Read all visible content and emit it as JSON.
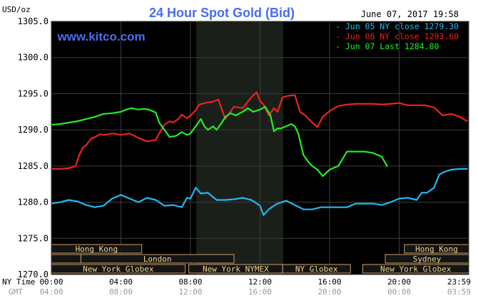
{
  "chart_data": {
    "type": "line",
    "title": "24 Hour Spot Gold (Bid)",
    "ylabel": "USD/oz",
    "watermark": "www.kitco.com",
    "timestamp": "June 07, 2017 19:58",
    "ylim": [
      1270,
      1305
    ],
    "y_ticks": [
      "1305.0",
      "1300.0",
      "1295.0",
      "1290.0",
      "1285.0",
      "1280.0",
      "1275.0",
      "1270.0"
    ],
    "x_range_hours": [
      0,
      24
    ],
    "x_tick_labels_ny": [
      "00:00",
      "04:00",
      "08:00",
      "12:00",
      "16:00",
      "20:00",
      "23:59"
    ],
    "x_tick_labels_gmt": [
      "04:00",
      "08:00",
      "12:00",
      "16:00",
      "20:00",
      "00:00",
      "03:59"
    ],
    "x_axis_row_labels": [
      "NY Time",
      "GMT"
    ],
    "shaded_session_hours": [
      8.33,
      13.33
    ],
    "legend": [
      {
        "label": "Jun 05 NY close 1279.30",
        "color": "#22b8ee"
      },
      {
        "label": "Jun 06 NY close 1293.60",
        "color": "#ee2222"
      },
      {
        "label": "Jun 07 Last 1284.80",
        "color": "#22ee22"
      }
    ],
    "series": [
      {
        "color": "#ee2222",
        "x": [
          0,
          0.5,
          1,
          1.4,
          1.6,
          1.8,
          2,
          2.3,
          2.5,
          2.8,
          3,
          3.3,
          3.5,
          4,
          4.5,
          5,
          5.5,
          6,
          6.2,
          6.5,
          6.8,
          7,
          7.3,
          7.5,
          7.8,
          8,
          8.3,
          8.5,
          9,
          9.3,
          9.6,
          10,
          10.5,
          11,
          11.5,
          11.8,
          12,
          12.2,
          12.5,
          12.8,
          13,
          13.3,
          13.6,
          14,
          14.3,
          14.6,
          15,
          15.3,
          15.6,
          16,
          16.5,
          17,
          17.5,
          18,
          18.5,
          19,
          19.5,
          20,
          20.5,
          21,
          21.5,
          22,
          22.5,
          23,
          23.5,
          23.9
        ],
        "y": [
          1284.6,
          1284.6,
          1284.7,
          1285.0,
          1286.5,
          1287.5,
          1287.9,
          1288.8,
          1289.0,
          1289.4,
          1289.3,
          1289.4,
          1289.5,
          1289.3,
          1289.5,
          1288.9,
          1288.4,
          1288.6,
          1289.5,
          1290.7,
          1291.2,
          1291.0,
          1291.5,
          1292.1,
          1291.6,
          1292.0,
          1292.7,
          1293.5,
          1293.8,
          1293.9,
          1294.2,
          1291.5,
          1293.2,
          1293.0,
          1294.5,
          1295.2,
          1294.0,
          1293.5,
          1292.0,
          1293.0,
          1292.5,
          1294.5,
          1294.7,
          1294.8,
          1292.5,
          1292.0,
          1291.0,
          1290.4,
          1291.8,
          1292.6,
          1293.3,
          1293.5,
          1293.6,
          1293.6,
          1293.6,
          1293.5,
          1293.6,
          1293.7,
          1293.4,
          1293.4,
          1293.4,
          1293.1,
          1292.0,
          1292.2,
          1291.8,
          1291.2
        ]
      },
      {
        "color": "#22ee22",
        "x": [
          0,
          0.5,
          1,
          1.5,
          2,
          2.5,
          3,
          3.5,
          4,
          4.3,
          4.6,
          5,
          5.3,
          5.6,
          6,
          6.2,
          6.5,
          6.8,
          7,
          7.2,
          7.5,
          7.8,
          8,
          8.3,
          8.6,
          8.8,
          9,
          9.3,
          9.5,
          9.8,
          10,
          10.3,
          10.6,
          11,
          11.3,
          11.6,
          12,
          12.3,
          12.6,
          12.8,
          13,
          13.2,
          13.5,
          13.8,
          14,
          14.2,
          14.5,
          14.8,
          15,
          15.3,
          15.6,
          16,
          16.5,
          17,
          17.5,
          18,
          18.5,
          19,
          19.3
        ],
        "y": [
          1290.7,
          1290.8,
          1291.0,
          1291.2,
          1291.5,
          1291.8,
          1292.2,
          1292.3,
          1292.5,
          1292.8,
          1293.0,
          1292.8,
          1292.9,
          1292.8,
          1292.4,
          1291.0,
          1290.0,
          1289.0,
          1289.1,
          1289.2,
          1289.7,
          1289.3,
          1289.5,
          1290.5,
          1291.5,
          1290.5,
          1290.0,
          1290.5,
          1290.0,
          1291.0,
          1291.8,
          1292.3,
          1292.0,
          1292.5,
          1293.0,
          1292.5,
          1292.8,
          1293.2,
          1292.0,
          1289.8,
          1290.2,
          1290.2,
          1290.5,
          1290.8,
          1290.5,
          1289.5,
          1286.5,
          1285.5,
          1285.0,
          1284.5,
          1283.6,
          1284.5,
          1285.0,
          1287.0,
          1287.0,
          1287.0,
          1286.8,
          1286.3,
          1285.0
        ]
      },
      {
        "color": "#22b8ee",
        "x": [
          0,
          0.5,
          1,
          1.5,
          2,
          2.5,
          3,
          3.5,
          4,
          4.5,
          5,
          5.5,
          6,
          6.5,
          7,
          7.5,
          7.8,
          8,
          8.3,
          8.6,
          9,
          9.5,
          10,
          10.5,
          11,
          11.5,
          12,
          12.2,
          12.5,
          12.8,
          13,
          13.5,
          14,
          14.5,
          15,
          15.5,
          16,
          16.5,
          17,
          17.5,
          18,
          18.5,
          19,
          19.5,
          20,
          20.5,
          21,
          21.3,
          21.6,
          22,
          22.3,
          22.6,
          23,
          23.5,
          23.9
        ],
        "y": [
          1279.8,
          1280.0,
          1280.3,
          1280.1,
          1279.6,
          1279.3,
          1279.5,
          1280.5,
          1281.0,
          1280.5,
          1280.0,
          1280.6,
          1280.3,
          1279.5,
          1279.6,
          1279.3,
          1280.6,
          1280.5,
          1282.0,
          1281.2,
          1281.3,
          1280.3,
          1280.3,
          1280.4,
          1280.6,
          1280.3,
          1279.5,
          1278.2,
          1279.0,
          1279.5,
          1279.8,
          1280.2,
          1279.6,
          1279.0,
          1279.0,
          1279.3,
          1279.3,
          1279.3,
          1279.3,
          1279.8,
          1279.8,
          1279.8,
          1279.6,
          1280.0,
          1280.5,
          1280.6,
          1280.3,
          1281.3,
          1281.3,
          1282.0,
          1283.8,
          1284.2,
          1284.5,
          1284.6,
          1284.6
        ]
      }
    ],
    "sessions": [
      {
        "label": "Hong Kong",
        "start": 0,
        "end": 5.2,
        "row": 1
      },
      {
        "label": "",
        "start": 0,
        "end": 1.7,
        "row": 2
      },
      {
        "label": "London",
        "start": 1.7,
        "end": 10.5,
        "row": 2
      },
      {
        "label": "New York Globex",
        "start": 0,
        "end": 7.7,
        "row": 3
      },
      {
        "label": "New York NYMEX",
        "start": 7.9,
        "end": 13.3,
        "row": 3
      },
      {
        "label": "NY Globex",
        "start": 13.3,
        "end": 17.2,
        "row": 3
      },
      {
        "label": "New York Globex",
        "start": 17.9,
        "end": 24,
        "row": 3
      },
      {
        "label": "Hong Kong",
        "start": 20.3,
        "end": 24,
        "row": 1
      },
      {
        "label": "Sydney",
        "start": 19.2,
        "end": 24,
        "row": 2
      }
    ]
  }
}
